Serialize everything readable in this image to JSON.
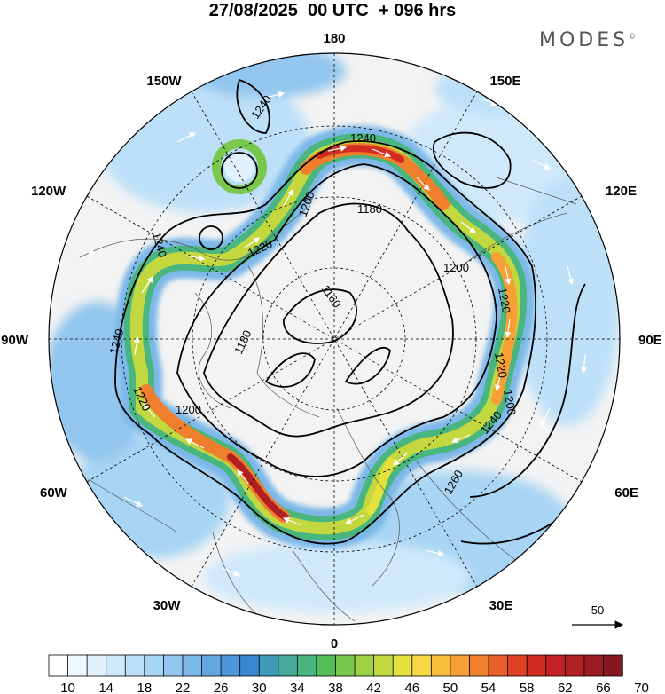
{
  "header": {
    "title": "27/08/2025  00 UTC  + 096 hrs",
    "brand": "MODES",
    "brand_mark": "©"
  },
  "map": {
    "projection": "north-polar-stereographic",
    "longitude_labels": [
      "180",
      "150E",
      "120E",
      "90E",
      "60E",
      "30E",
      "0",
      "30W",
      "60W",
      "90W",
      "120W",
      "150W"
    ],
    "contour_labels": [
      "1240",
      "1240",
      "1240",
      "1240",
      "1220",
      "1220",
      "1220",
      "1220",
      "1200",
      "1200",
      "1200",
      "1200",
      "1180",
      "1180",
      "1160",
      "1260",
      "1240"
    ],
    "vector_reference_label": "50"
  },
  "colorbar": {
    "tick_labels": [
      "10",
      "14",
      "18",
      "22",
      "26",
      "30",
      "34",
      "38",
      "42",
      "46",
      "50",
      "54",
      "58",
      "62",
      "66",
      "70"
    ],
    "colors": [
      "#ffffff",
      "#f0f8ff",
      "#e1f1fd",
      "#cfe9fb",
      "#bde0f8",
      "#a9d5f4",
      "#92c6ee",
      "#7bb7e8",
      "#64a6e0",
      "#4d95d8",
      "#3a86cf",
      "#3f9ab8",
      "#44a99d",
      "#4ab67f",
      "#55bd58",
      "#79c84d",
      "#9ed043",
      "#c2d83e",
      "#e4e03c",
      "#f7d843",
      "#f8bd3d",
      "#f59f35",
      "#ef7f2d",
      "#e85f27",
      "#df4124",
      "#d22d22",
      "#c32222",
      "#b01f22",
      "#9a1b22",
      "#851820"
    ]
  }
}
